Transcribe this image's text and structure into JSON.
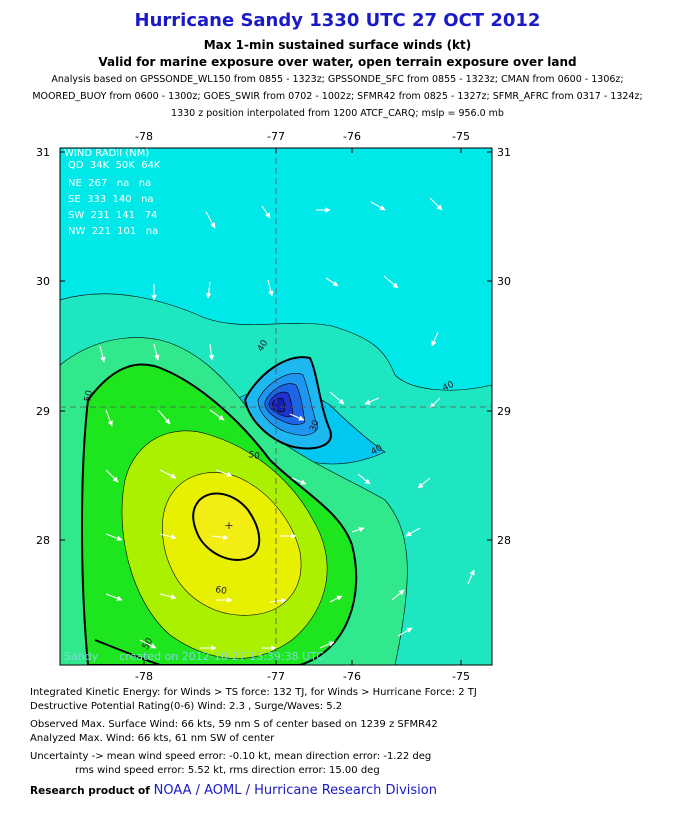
{
  "header": {
    "title": "Hurricane Sandy 1330 UTC 27 OCT 2012",
    "subtitle1": "Max 1-min sustained surface winds (kt)",
    "subtitle2": "Valid for marine exposure over water, open terrain exposure over land",
    "analysis_lines": [
      "Analysis based on GPSSONDE_WL150 from 0855 - 1323z; GPSSONDE_SFC from 0855 - 1323z; CMAN from 0600 - 1306z;",
      "MOORED_BUOY from 0600 - 1300z; GOES_SWIR from 0702 - 1002z; SFMR42 from 0825 - 1327z; SFMR_AFRC from 0317 - 1324z;",
      "1330 z position interpolated from 1200 ATCF_CARQ; mslp = 956.0 mb"
    ]
  },
  "map": {
    "lon_ticks": [
      "-78",
      "-77",
      "-76",
      "-75"
    ],
    "lat_ticks": [
      "31",
      "30",
      "29",
      "28"
    ],
    "contour_labels": [
      "40",
      "40",
      "40",
      "30",
      "50",
      "50",
      "60",
      "50"
    ],
    "wind_radii_table": {
      "title": "WIND RADII (NM)",
      "rows": [
        "QD  34K  50K  64K",
        "NE  267   na   na",
        "SE  333  140   na",
        "SW  231  141   74",
        "NW  221  101   na"
      ]
    },
    "credit": "Sandy      created on 2012-10-27 13:39:38 UTC",
    "colors": {
      "ts_cyan": "#00e8e8",
      "cyan2": "#1ee6c0",
      "green1": "#32e88c",
      "green2": "#1ee61e",
      "yellowgreen": "#aaf000",
      "yellow": "#e6f000",
      "lightblue": "#00c8f0"
    }
  },
  "footer": {
    "ike": "Integrated Kinetic Energy: for Winds > TS force: 132 TJ, for Winds > Hurricane Force: 2 TJ",
    "dpr": "Destructive Potential Rating(0-6)  Wind: 2.3 , Surge/Waves: 5.2",
    "obs": "Observed Max. Surface Wind: 66 kts, 59 nm S of center based on 1239 z SFMR42",
    "analyzed": "Analyzed Max. Wind: 66 kts, 61 nm  SW of center",
    "uncert1": "Uncertainty -> mean wind speed error:  -0.10 kt, mean direction error:  -1.22 deg",
    "uncert2": "rms wind speed error: 5.52 kt, rms direction error: 15.00 deg",
    "research_label": "Research product of",
    "org": "NOAA  /  AOML  /  Hurricane Research Division"
  }
}
